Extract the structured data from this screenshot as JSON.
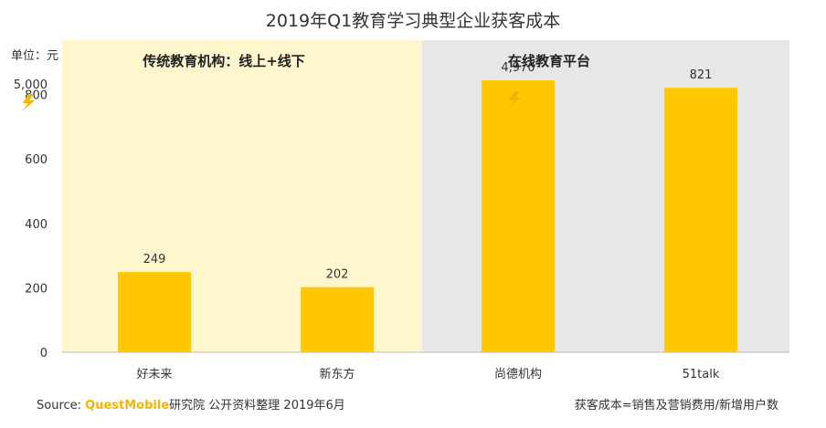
{
  "title": "2019年Q1教育学习典型企业获客成本",
  "unit_label": "单位：元",
  "colors": {
    "bar": "#FFC800",
    "panel_traditional": "#FFF6CE",
    "panel_online": "#E8E6E6",
    "axis": "#BBBBBB",
    "brand": "#F5B400",
    "text": "#333333"
  },
  "groups": [
    {
      "label": "传统教育机构：线上+线下",
      "categories": [
        "好未来",
        "新东方"
      ]
    },
    {
      "label": "在线教育平台",
      "categories": [
        "尚德机构",
        "51talk"
      ]
    }
  ],
  "chart_data": {
    "type": "bar",
    "categories": [
      "好未来",
      "新东方",
      "尚德机构",
      "51talk"
    ],
    "values": [
      249,
      202,
      4970,
      821
    ],
    "value_labels": [
      "249",
      "202",
      "4,970",
      "821"
    ],
    "title": "2019年Q1教育学习典型企业获客成本",
    "xlabel": "",
    "ylabel": "单位：元",
    "yticks": [
      0,
      200,
      400,
      600,
      800
    ],
    "yticks_broken_top": {
      "value": 5000,
      "label": "5,000"
    },
    "ylim": [
      0,
      1000
    ],
    "axis_break": true,
    "grid": false,
    "legend": "none"
  },
  "footer": {
    "source_prefix": "Source:",
    "brand": "QuestMobile",
    "source_suffix": "研究院 公开资料整理 2019年6月",
    "note": "获客成本=销售及营销费用/新增用户数"
  }
}
